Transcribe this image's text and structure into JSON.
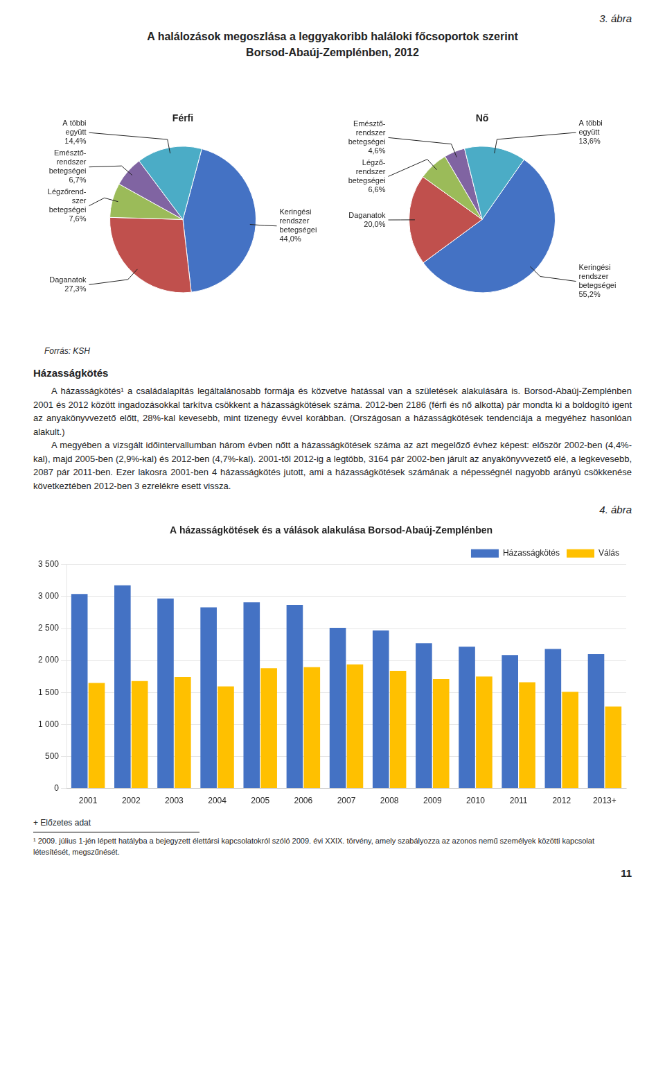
{
  "figure_label": "3. ábra",
  "title": "A halálozások megoszlása a leggyakoribb haláloki főcsoportok szerint",
  "subtitle": "Borsod-Abaúj-Zemplénben, 2012",
  "chart_data": [
    {
      "type": "pie",
      "title": "Férfi",
      "categories": [
        "Keringési\nrendszer\nbetegségei",
        "Daganatok",
        "Légzőrend-\nszer\nbetegségei",
        "Emésztő-\nrendszer\nbetegségei",
        "A többi\negyütt"
      ],
      "values": [
        44.0,
        27.3,
        7.6,
        6.7,
        14.4
      ],
      "value_labels": [
        "44,0%",
        "27,3%",
        "7,6%",
        "6,7%",
        "14,4%"
      ],
      "colors": [
        "#4472C4",
        "#C0504D",
        "#9BBB59",
        "#8064A2",
        "#4BACC6"
      ],
      "data_labels": true
    },
    {
      "type": "pie",
      "title": "Nő",
      "categories": [
        "Keringési\nrendszer\nbetegségei",
        "Daganatok",
        "Légző-\nrendszer\nbetegségei",
        "Emésztő-\nrendszer\nbetegségei",
        "A többi\negyütt"
      ],
      "values": [
        55.2,
        20.0,
        6.6,
        4.6,
        13.6
      ],
      "value_labels": [
        "55,2%",
        "20,0%",
        "6,6%",
        "4,6%",
        "13,6%"
      ],
      "colors": [
        "#4472C4",
        "#C0504D",
        "#9BBB59",
        "#8064A2",
        "#4BACC6"
      ],
      "data_labels": true
    },
    {
      "type": "bar",
      "title": "A házasságkötések és a válások alakulása Borsod-Abaúj-Zemplénben",
      "categories": [
        "2001",
        "2002",
        "2003",
        "2004",
        "2005",
        "2006",
        "2007",
        "2008",
        "2009",
        "2010",
        "2011",
        "2012",
        "2013+"
      ],
      "series": [
        {
          "name": "Házasságkötés",
          "color": "#4472C4",
          "values": [
            3040,
            3175,
            2970,
            2830,
            2910,
            2870,
            2510,
            2470,
            2270,
            2215,
            2085,
            2180,
            2100
          ]
        },
        {
          "name": "Válás",
          "color": "#FFC000",
          "values": [
            1650,
            1680,
            1740,
            1595,
            1880,
            1895,
            1940,
            1840,
            1710,
            1750,
            1660,
            1510,
            1280
          ]
        }
      ],
      "ylim": [
        0,
        3500
      ],
      "yticks": [
        0,
        500,
        {
          "value": 1000,
          "label": "1 000"
        },
        {
          "value": 1500,
          "label": "1 500"
        },
        {
          "value": 2000,
          "label": "2 000"
        },
        {
          "value": 2500,
          "label": "2 500"
        },
        {
          "value": 3000,
          "label": "3 000"
        },
        {
          "value": 3500,
          "label": "3 500"
        }
      ],
      "grid": "y",
      "legend": "upper right"
    }
  ],
  "source": "Forrás: KSH",
  "heading": "Házasságkötés",
  "body_text": [
    "A házasságkötés¹ a családalapítás legáltalánosabb formája és közvetve hatással van a születések alakulására is. Borsod-Abaúj-Zemplénben 2001 és 2012 között ingadozásokkal tarkítva csökkent a házasságkötések száma. 2012-ben 2186 (férfi és nő alkotta) pár mondta ki a boldogító igent az anyakönyvvezető előtt, 28%-kal kevesebb, mint tizenegy évvel korábban. (Országosan a házasságkötések tendenciája a megyéhez hasonlóan alakult.)",
    "A megyében a vizsgált időintervallumban három évben nőtt a házasságkötések száma az azt megelőző évhez képest: először 2002-ben (4,4%-kal), majd 2005-ben (2,9%-kal) és 2012-ben (4,7%-kal). 2001-től 2012-ig a legtöbb, 3164 pár 2002-ben járult az anyakönyvvezető elé, a legkevesebb, 2087 pár 2011-ben. Ezer lakosra 2001-ben 4 házasságkötés jutott, ami a házasságkötések számának a népességnél nagyobb arányú csökkenése következtében 2012-ben 3 ezrelékre esett vissza."
  ],
  "figure_label_2": "4. ábra",
  "footnotes": [
    "+ Előzetes adat",
    "¹ 2009. július 1-jén lépett hatályba a bejegyzett élettársi kapcsolatokról szóló 2009. évi XXIX. törvény, amely szabályozza az azonos nemű személyek közötti kapcsolat létesítését, megszűnését."
  ],
  "page_number": "11"
}
